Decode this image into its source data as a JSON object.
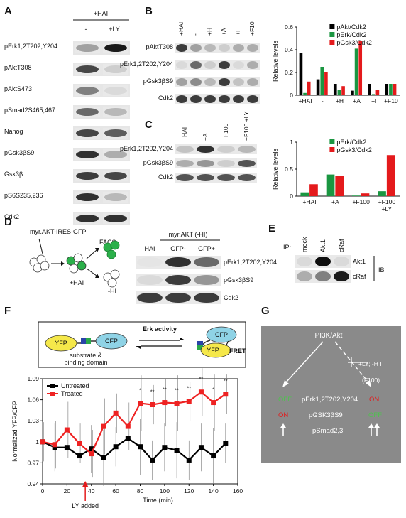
{
  "panels": {
    "A": {
      "letter": "A",
      "header": "+HAI",
      "cols": [
        "-",
        "+LY"
      ],
      "rows": [
        "pErk1,2T202,Y204",
        "pAktT308",
        "pAktS473",
        "pSmad2S465,467",
        "Nanog",
        "pGsk3βS9",
        "Gsk3β",
        "pS6S235,236",
        "Cdk2"
      ]
    },
    "B": {
      "letter": "B",
      "lanes": [
        "+HAI",
        "-",
        "+H",
        "+A",
        "+I",
        "+F10"
      ],
      "rows": [
        "pAktT308",
        "pErk1,2T202,Y204",
        "pGsk3βS9",
        "Cdk2"
      ]
    },
    "C": {
      "letter": "C",
      "lanes": [
        "+HAI",
        "+A",
        "+F100",
        "+F100 +LY"
      ],
      "rows": [
        "pErk1,2T202,Y204",
        "pGsk3βS9",
        "Cdk2"
      ]
    },
    "D": {
      "letter": "D",
      "construct": "myr.AKT-IRES-GFP",
      "facs": "FACS",
      "hai": "+HAI",
      "hi": "-HI",
      "blot_header": "myr.AKT (-HI)",
      "lanes": [
        "HAI",
        "GFP-",
        "GFP+"
      ],
      "rows": [
        "pErk1,2T202,Y204",
        "pGsk3βS9",
        "Cdk2"
      ]
    },
    "E": {
      "letter": "E",
      "ip": "IP:",
      "lanes": [
        "mock",
        "Akt1",
        "cRaf"
      ],
      "rows": [
        "Akt1",
        "cRaf"
      ],
      "ib": "IB"
    },
    "F": {
      "letter": "F",
      "yfp": "YFP",
      "cfp": "CFP",
      "erk_activity": "Erk activity",
      "substrate": "substrate &",
      "binding": "binding domain",
      "fret": "FRET",
      "ly_added": "LY added"
    },
    "G": {
      "letter": "G",
      "pi3k": "PI3K/Akt",
      "treatment": "+LY; -H I",
      "f100": "(F100)",
      "off_left": "OFF",
      "on_left": "ON",
      "on_right": "ON",
      "off_right": "OFF",
      "perk": "pErk1,2T202,Y204",
      "pgsk": "pGSK3βS9",
      "psmad": "pSmad2,3"
    }
  },
  "chart_data": [
    {
      "type": "bar",
      "panel": "B",
      "categories": [
        "+HAI",
        "-",
        "+H",
        "+A",
        "+I",
        "+F10"
      ],
      "ylabel": "Relative levels",
      "ylim": [
        0,
        0.6
      ],
      "yticks": [
        0,
        0.2,
        0.4,
        0.6
      ],
      "legend": "top-right",
      "series": [
        {
          "name": "pAkt/Cdk2",
          "color": "#000000",
          "values": [
            0.37,
            0.14,
            0.1,
            0.04,
            0.1,
            0.1
          ]
        },
        {
          "name": "pErk/Cdk2",
          "color": "#1a9641",
          "values": [
            0.02,
            0.25,
            0.05,
            0.41,
            0.01,
            0.1
          ]
        },
        {
          "name": "pGsk3/Cdk2",
          "color": "#e41a1c",
          "values": [
            0.12,
            0.2,
            0.08,
            0.48,
            0.05,
            0.1
          ]
        }
      ]
    },
    {
      "type": "bar",
      "panel": "C",
      "categories": [
        "+HAI",
        "+A",
        "+F100",
        "+F100 +LY"
      ],
      "ylabel": "Relative levels",
      "ylim": [
        0,
        1
      ],
      "yticks": [
        0,
        0.5,
        1
      ],
      "legend": "top-right",
      "series": [
        {
          "name": "pErk/Cdk2",
          "color": "#1a9641",
          "values": [
            0.07,
            0.4,
            0.01,
            0.09
          ]
        },
        {
          "name": "pGsk3/Cdk2",
          "color": "#e41a1c",
          "values": [
            0.22,
            0.37,
            0.05,
            0.76
          ]
        }
      ]
    },
    {
      "type": "line",
      "panel": "F",
      "xlabel": "Time (min)",
      "ylabel": "Normalized YFP/CFP",
      "xlim": [
        0,
        160
      ],
      "ylim": [
        0.94,
        1.09
      ],
      "xticks": [
        0,
        20,
        40,
        60,
        80,
        100,
        120,
        140,
        160
      ],
      "yticks": [
        0.94,
        0.97,
        1,
        1.03,
        1.06,
        1.09
      ],
      "legend": "top-left",
      "x": [
        0,
        10,
        20,
        30,
        40,
        50,
        60,
        70,
        80,
        90,
        100,
        110,
        120,
        130,
        140,
        150
      ],
      "series": [
        {
          "name": "Untreated",
          "color": "#000000",
          "values": [
            1.0,
            0.992,
            0.992,
            0.98,
            0.99,
            0.977,
            0.993,
            1.005,
            0.993,
            0.974,
            0.992,
            0.988,
            0.974,
            0.992,
            0.98,
            0.998
          ]
        },
        {
          "name": "Treated",
          "color": "#ee2222",
          "values": [
            1.0,
            0.996,
            1.017,
            0.998,
            0.983,
            1.022,
            1.041,
            1.022,
            1.055,
            1.053,
            1.056,
            1.055,
            1.058,
            1.071,
            1.056,
            1.068
          ]
        }
      ],
      "significance": [
        "*",
        "**",
        "**",
        "**",
        "**",
        "**",
        "*",
        "**"
      ],
      "annotation": "LY added"
    }
  ]
}
